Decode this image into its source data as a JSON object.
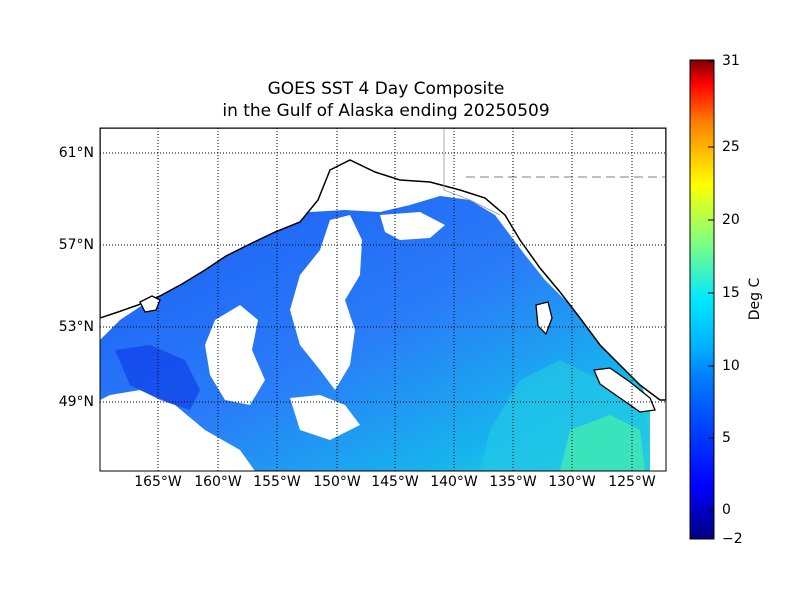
{
  "map": {
    "title_line1": "GOES SST 4 Day Composite",
    "title_line2": "in the Gulf of Alaska ending 20250509",
    "lat_labels": [
      "61°N",
      "57°N",
      "53°N",
      "49°N"
    ],
    "lon_labels": [
      "165°W",
      "160°W",
      "155°W",
      "150°W",
      "145°W",
      "140°W",
      "135°W",
      "130°W",
      "125°W"
    ]
  },
  "colorbar": {
    "unit_label": "Deg C",
    "ticks": [
      "31",
      "25",
      "20",
      "15",
      "10",
      "5",
      "0",
      "−2"
    ],
    "colors": [
      "#00007f",
      "#0000ff",
      "#007fff",
      "#00ffff",
      "#7fff7f",
      "#ffff00",
      "#ff7f00",
      "#ff0000",
      "#7f0000"
    ]
  }
}
